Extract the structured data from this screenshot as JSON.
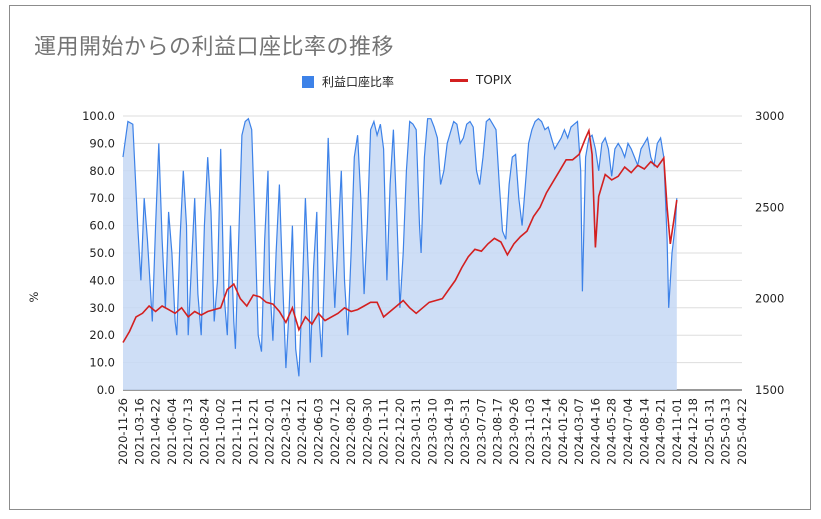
{
  "chart_data": {
    "type": "line",
    "title": "運用開始からの利益口座比率の推移",
    "ylabel_left": "%",
    "legend": {
      "position": "top",
      "entries": [
        "利益口座比率",
        "TOPIX"
      ]
    },
    "colors": {
      "profit_ratio_line": "#3d82e8",
      "profit_ratio_fill": "#c6d8f5",
      "topix_line": "#d32020",
      "grid": "#dddddd"
    },
    "grid": true,
    "y_left": {
      "range": [
        0,
        100
      ],
      "ticks": [
        "0.0",
        "10.0",
        "20.0",
        "30.0",
        "40.0",
        "50.0",
        "60.0",
        "70.0",
        "80.0",
        "90.0",
        "100.0"
      ]
    },
    "y_right": {
      "range": [
        1500,
        3000
      ],
      "ticks": [
        "1500",
        "2000",
        "2500",
        "3000"
      ]
    },
    "x_ticks": [
      "2020-11-26",
      "2021-03-16",
      "2021-04-22",
      "2021-06-04",
      "2021-07-13",
      "2021-08-24",
      "2021-10-02",
      "2021-11-11",
      "2021-12-21",
      "2022-02-01",
      "2022-03-12",
      "2022-04-21",
      "2022-06-03",
      "2022-07-12",
      "2022-08-20",
      "2022-09-30",
      "2022-11-11",
      "2022-12-20",
      "2023-01-31",
      "2023-03-10",
      "2023-04-19",
      "2023-05-31",
      "2023-07-07",
      "2023-08-17",
      "2023-09-26",
      "2023-11-03",
      "2023-12-14",
      "2024-01-26",
      "2024-03-07",
      "2024-04-16",
      "2024-05-28",
      "2024-07-04",
      "2024-08-14",
      "2024-09-21",
      "2024-11-01",
      "2024-12-18",
      "2025-01-31",
      "2025-03-13",
      "2025-04-22"
    ],
    "series": [
      {
        "name": "利益口座比率",
        "axis": "left",
        "style": "area",
        "points": [
          [
            0,
            85
          ],
          [
            0.3,
            98
          ],
          [
            0.6,
            97
          ],
          [
            0.9,
            60
          ],
          [
            1.1,
            40
          ],
          [
            1.3,
            70
          ],
          [
            1.5,
            55
          ],
          [
            1.7,
            35
          ],
          [
            1.8,
            25
          ],
          [
            2.0,
            60
          ],
          [
            2.2,
            90
          ],
          [
            2.4,
            55
          ],
          [
            2.6,
            30
          ],
          [
            2.8,
            65
          ],
          [
            3.0,
            50
          ],
          [
            3.2,
            25
          ],
          [
            3.3,
            20
          ],
          [
            3.5,
            55
          ],
          [
            3.7,
            80
          ],
          [
            3.9,
            60
          ],
          [
            4.0,
            20
          ],
          [
            4.2,
            45
          ],
          [
            4.4,
            70
          ],
          [
            4.6,
            35
          ],
          [
            4.8,
            20
          ],
          [
            5.0,
            60
          ],
          [
            5.2,
            85
          ],
          [
            5.4,
            65
          ],
          [
            5.6,
            25
          ],
          [
            5.8,
            40
          ],
          [
            6.0,
            88
          ],
          [
            6.2,
            35
          ],
          [
            6.4,
            20
          ],
          [
            6.6,
            60
          ],
          [
            6.8,
            25
          ],
          [
            6.9,
            15
          ],
          [
            7.1,
            55
          ],
          [
            7.3,
            93
          ],
          [
            7.5,
            98
          ],
          [
            7.7,
            99
          ],
          [
            7.9,
            95
          ],
          [
            8.1,
            60
          ],
          [
            8.3,
            20
          ],
          [
            8.5,
            14
          ],
          [
            8.7,
            55
          ],
          [
            8.9,
            80
          ],
          [
            9.0,
            40
          ],
          [
            9.2,
            18
          ],
          [
            9.4,
            50
          ],
          [
            9.6,
            75
          ],
          [
            9.8,
            40
          ],
          [
            10.0,
            8
          ],
          [
            10.2,
            30
          ],
          [
            10.4,
            60
          ],
          [
            10.6,
            15
          ],
          [
            10.8,
            5
          ],
          [
            11.0,
            35
          ],
          [
            11.2,
            70
          ],
          [
            11.4,
            40
          ],
          [
            11.5,
            10
          ],
          [
            11.7,
            45
          ],
          [
            11.9,
            65
          ],
          [
            12.0,
            30
          ],
          [
            12.2,
            12
          ],
          [
            12.4,
            50
          ],
          [
            12.6,
            92
          ],
          [
            12.8,
            60
          ],
          [
            13.0,
            30
          ],
          [
            13.2,
            55
          ],
          [
            13.4,
            80
          ],
          [
            13.6,
            40
          ],
          [
            13.8,
            20
          ],
          [
            14.0,
            50
          ],
          [
            14.2,
            85
          ],
          [
            14.4,
            93
          ],
          [
            14.6,
            70
          ],
          [
            14.8,
            35
          ],
          [
            15.0,
            60
          ],
          [
            15.2,
            95
          ],
          [
            15.4,
            98
          ],
          [
            15.6,
            93
          ],
          [
            15.8,
            97
          ],
          [
            16.0,
            88
          ],
          [
            16.2,
            40
          ],
          [
            16.4,
            75
          ],
          [
            16.6,
            95
          ],
          [
            16.8,
            65
          ],
          [
            17.0,
            30
          ],
          [
            17.2,
            50
          ],
          [
            17.4,
            80
          ],
          [
            17.6,
            98
          ],
          [
            17.8,
            97
          ],
          [
            18.0,
            95
          ],
          [
            18.2,
            60
          ],
          [
            18.3,
            50
          ],
          [
            18.5,
            85
          ],
          [
            18.7,
            99
          ],
          [
            18.9,
            99
          ],
          [
            19.1,
            96
          ],
          [
            19.3,
            92
          ],
          [
            19.5,
            75
          ],
          [
            19.7,
            80
          ],
          [
            19.9,
            90
          ],
          [
            20.1,
            94
          ],
          [
            20.3,
            98
          ],
          [
            20.5,
            97
          ],
          [
            20.7,
            90
          ],
          [
            20.9,
            92
          ],
          [
            21.1,
            97
          ],
          [
            21.3,
            98
          ],
          [
            21.5,
            96
          ],
          [
            21.7,
            80
          ],
          [
            21.9,
            75
          ],
          [
            22.1,
            85
          ],
          [
            22.3,
            98
          ],
          [
            22.5,
            99
          ],
          [
            22.7,
            97
          ],
          [
            22.9,
            95
          ],
          [
            23.1,
            75
          ],
          [
            23.3,
            58
          ],
          [
            23.5,
            55
          ],
          [
            23.7,
            75
          ],
          [
            23.9,
            85
          ],
          [
            24.1,
            86
          ],
          [
            24.3,
            70
          ],
          [
            24.5,
            60
          ],
          [
            24.7,
            75
          ],
          [
            24.9,
            90
          ],
          [
            25.1,
            95
          ],
          [
            25.3,
            98
          ],
          [
            25.5,
            99
          ],
          [
            25.7,
            98
          ],
          [
            25.9,
            95
          ],
          [
            26.1,
            96
          ],
          [
            26.3,
            92
          ],
          [
            26.5,
            88
          ],
          [
            26.7,
            90
          ],
          [
            26.9,
            92
          ],
          [
            27.1,
            95
          ],
          [
            27.3,
            92
          ],
          [
            27.5,
            96
          ],
          [
            27.7,
            97
          ],
          [
            27.9,
            98
          ],
          [
            28.1,
            80
          ],
          [
            28.2,
            36
          ],
          [
            28.4,
            85
          ],
          [
            28.6,
            92
          ],
          [
            28.8,
            93
          ],
          [
            29.0,
            88
          ],
          [
            29.2,
            80
          ],
          [
            29.4,
            90
          ],
          [
            29.6,
            92
          ],
          [
            29.8,
            88
          ],
          [
            30.0,
            78
          ],
          [
            30.2,
            88
          ],
          [
            30.4,
            90
          ],
          [
            30.6,
            88
          ],
          [
            30.8,
            85
          ],
          [
            31.0,
            90
          ],
          [
            31.2,
            88
          ],
          [
            31.4,
            85
          ],
          [
            31.6,
            82
          ],
          [
            31.8,
            88
          ],
          [
            32.0,
            90
          ],
          [
            32.2,
            92
          ],
          [
            32.4,
            85
          ],
          [
            32.6,
            82
          ],
          [
            32.8,
            90
          ],
          [
            33.0,
            92
          ],
          [
            33.2,
            85
          ],
          [
            33.4,
            55
          ],
          [
            33.5,
            30
          ],
          [
            33.7,
            50
          ],
          [
            33.9,
            60
          ],
          [
            34.0,
            70
          ]
        ]
      },
      {
        "name": "TOPIX",
        "axis": "right",
        "style": "line",
        "points": [
          [
            0,
            1760
          ],
          [
            0.4,
            1820
          ],
          [
            0.8,
            1900
          ],
          [
            1.2,
            1920
          ],
          [
            1.6,
            1960
          ],
          [
            2.0,
            1930
          ],
          [
            2.4,
            1960
          ],
          [
            2.8,
            1940
          ],
          [
            3.2,
            1920
          ],
          [
            3.6,
            1950
          ],
          [
            4.0,
            1900
          ],
          [
            4.4,
            1930
          ],
          [
            4.8,
            1910
          ],
          [
            5.2,
            1930
          ],
          [
            5.6,
            1940
          ],
          [
            6.0,
            1950
          ],
          [
            6.4,
            2050
          ],
          [
            6.8,
            2080
          ],
          [
            7.2,
            2000
          ],
          [
            7.6,
            1960
          ],
          [
            8.0,
            2020
          ],
          [
            8.4,
            2010
          ],
          [
            8.8,
            1980
          ],
          [
            9.2,
            1970
          ],
          [
            9.6,
            1930
          ],
          [
            10.0,
            1870
          ],
          [
            10.4,
            1950
          ],
          [
            10.8,
            1830
          ],
          [
            11.2,
            1900
          ],
          [
            11.6,
            1860
          ],
          [
            12.0,
            1920
          ],
          [
            12.4,
            1880
          ],
          [
            12.8,
            1900
          ],
          [
            13.2,
            1920
          ],
          [
            13.6,
            1950
          ],
          [
            14.0,
            1930
          ],
          [
            14.4,
            1940
          ],
          [
            14.8,
            1960
          ],
          [
            15.2,
            1980
          ],
          [
            15.6,
            1980
          ],
          [
            16.0,
            1900
          ],
          [
            16.4,
            1930
          ],
          [
            16.8,
            1960
          ],
          [
            17.2,
            1990
          ],
          [
            17.6,
            1950
          ],
          [
            18.0,
            1920
          ],
          [
            18.4,
            1950
          ],
          [
            18.8,
            1980
          ],
          [
            19.2,
            1990
          ],
          [
            19.6,
            2000
          ],
          [
            20.0,
            2050
          ],
          [
            20.4,
            2100
          ],
          [
            20.8,
            2170
          ],
          [
            21.2,
            2230
          ],
          [
            21.6,
            2270
          ],
          [
            22.0,
            2260
          ],
          [
            22.4,
            2300
          ],
          [
            22.8,
            2330
          ],
          [
            23.2,
            2310
          ],
          [
            23.6,
            2240
          ],
          [
            24.0,
            2300
          ],
          [
            24.4,
            2340
          ],
          [
            24.8,
            2370
          ],
          [
            25.2,
            2450
          ],
          [
            25.6,
            2500
          ],
          [
            26.0,
            2580
          ],
          [
            26.4,
            2640
          ],
          [
            26.8,
            2700
          ],
          [
            27.2,
            2760
          ],
          [
            27.6,
            2760
          ],
          [
            28.0,
            2790
          ],
          [
            28.4,
            2880
          ],
          [
            28.6,
            2920
          ],
          [
            28.8,
            2790
          ],
          [
            29.0,
            2280
          ],
          [
            29.2,
            2560
          ],
          [
            29.6,
            2680
          ],
          [
            30.0,
            2650
          ],
          [
            30.4,
            2670
          ],
          [
            30.8,
            2720
          ],
          [
            31.2,
            2690
          ],
          [
            31.6,
            2730
          ],
          [
            32.0,
            2710
          ],
          [
            32.4,
            2750
          ],
          [
            32.8,
            2720
          ],
          [
            33.2,
            2770
          ],
          [
            33.4,
            2500
          ],
          [
            33.6,
            2300
          ],
          [
            33.8,
            2420
          ],
          [
            34.0,
            2540
          ]
        ]
      }
    ]
  }
}
